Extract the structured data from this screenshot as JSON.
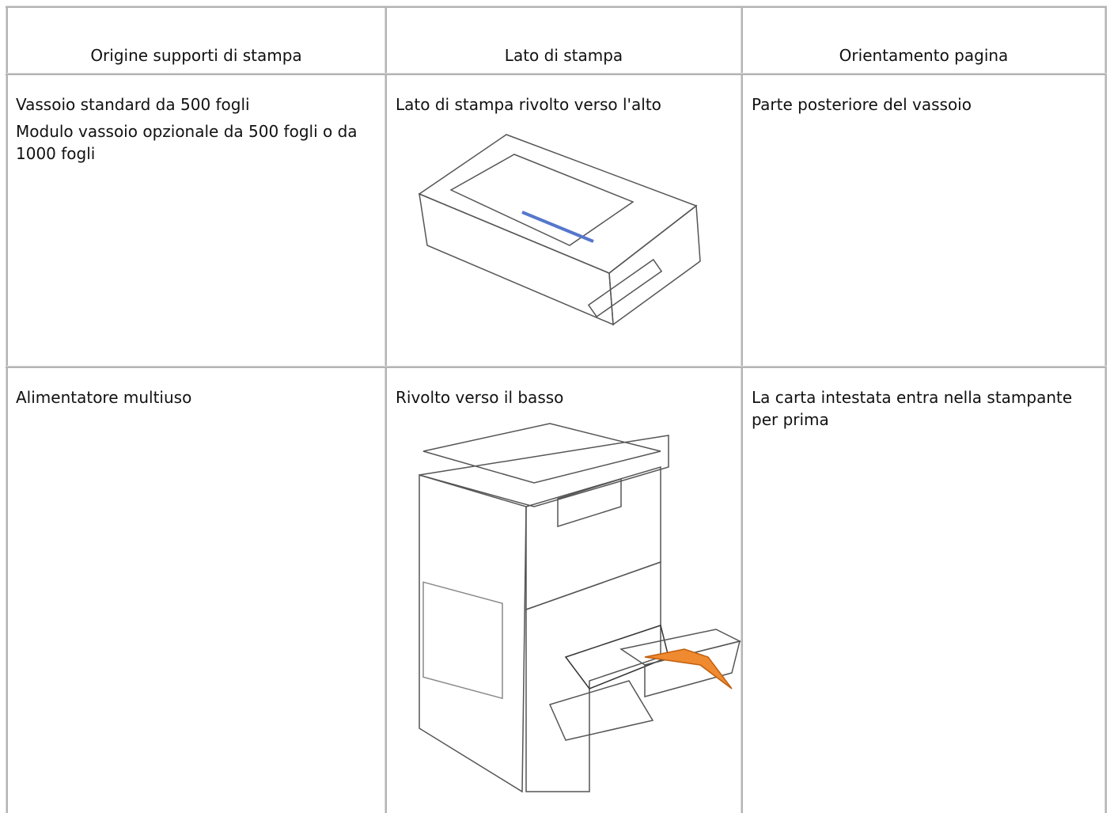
{
  "table": {
    "header": [
      "Origine supporti di stampa",
      "Lato di stampa",
      "Orientamento pagina"
    ],
    "rows": [
      [
        [
          "Vassoio standard da 500 fogli",
          "Modulo vassoio opzionale da 500 fogli o da 1000 fogli"
        ],
        [
          "Lato di stampa rivolto verso l'alto"
        ],
        [
          "Parte posteriore del vassoio"
        ]
      ],
      [
        [
          "Alimentatore multiuso"
        ],
        [
          "Rivolto verso il basso"
        ],
        [
          "La carta intestata entra nella stampante per prima"
        ]
      ]
    ]
  }
}
